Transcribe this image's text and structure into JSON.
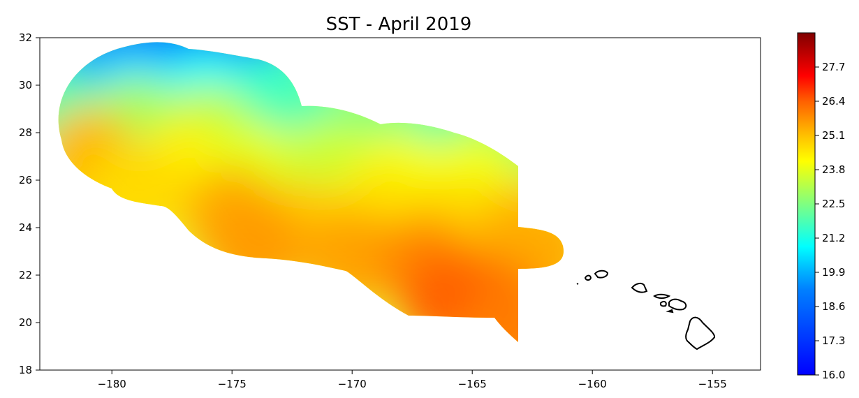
{
  "chart_data": {
    "type": "heatmap",
    "title": "SST - April 2019",
    "xlabel": "",
    "ylabel": "",
    "xlim": [
      -183,
      -153
    ],
    "ylim": [
      18,
      32
    ],
    "x_ticks": [
      -180,
      -175,
      -170,
      -165,
      -160,
      -155
    ],
    "x_tick_labels": [
      "−180",
      "−175",
      "−170",
      "−165",
      "−160",
      "−155"
    ],
    "y_ticks": [
      18,
      20,
      22,
      24,
      26,
      28,
      30,
      32
    ],
    "y_tick_labels": [
      "18",
      "20",
      "22",
      "24",
      "26",
      "28",
      "30",
      "32"
    ],
    "colorbar": {
      "colormap": "jet",
      "range": [
        16.0,
        29.0
      ],
      "ticks": [
        16.0,
        17.3,
        18.6,
        19.9,
        21.2,
        22.5,
        23.8,
        25.1,
        26.4,
        27.7
      ],
      "tick_labels": [
        "16.0",
        "17.3",
        "18.6",
        "19.9",
        "21.2",
        "22.5",
        "23.8",
        "25.1",
        "26.4",
        "27.7"
      ]
    },
    "grid": false,
    "overlay": "Hawaiian Islands coastline",
    "sst_field": [
      {
        "lon": -182,
        "lat": 30,
        "value": 21.5
      },
      {
        "lon": -180,
        "lat": 31,
        "value": 19.5
      },
      {
        "lon": -178,
        "lat": 31.5,
        "value": 19.0
      },
      {
        "lon": -176,
        "lat": 31,
        "value": 19.2
      },
      {
        "lon": -174,
        "lat": 30.8,
        "value": 19.0
      },
      {
        "lon": -179,
        "lat": 29.5,
        "value": 20.5
      },
      {
        "lon": -176,
        "lat": 29.5,
        "value": 21.0
      },
      {
        "lon": -173,
        "lat": 29.5,
        "value": 21.5
      },
      {
        "lon": -182,
        "lat": 28.5,
        "value": 22.0
      },
      {
        "lon": -179,
        "lat": 28.3,
        "value": 23.0
      },
      {
        "lon": -176,
        "lat": 28.0,
        "value": 23.3
      },
      {
        "lon": -172,
        "lat": 28.5,
        "value": 21.8
      },
      {
        "lon": -169,
        "lat": 28.0,
        "value": 22.5
      },
      {
        "lon": -166,
        "lat": 27.8,
        "value": 22.0
      },
      {
        "lon": -164,
        "lat": 27.0,
        "value": 22.8
      },
      {
        "lon": -181,
        "lat": 27.0,
        "value": 25.0
      },
      {
        "lon": -177,
        "lat": 26.5,
        "value": 24.3
      },
      {
        "lon": -174,
        "lat": 26.3,
        "value": 23.8
      },
      {
        "lon": -171,
        "lat": 26.5,
        "value": 23.5
      },
      {
        "lon": -168,
        "lat": 26.0,
        "value": 24.0
      },
      {
        "lon": -165,
        "lat": 25.8,
        "value": 24.0
      },
      {
        "lon": -179,
        "lat": 25.5,
        "value": 24.6
      },
      {
        "lon": -175,
        "lat": 24.5,
        "value": 25.2
      },
      {
        "lon": -172,
        "lat": 24.0,
        "value": 24.8
      },
      {
        "lon": -169,
        "lat": 24.5,
        "value": 24.5
      },
      {
        "lon": -166,
        "lat": 24.0,
        "value": 24.6
      },
      {
        "lon": -163,
        "lat": 24.0,
        "value": 24.8
      },
      {
        "lon": -174,
        "lat": 23.2,
        "value": 25.4
      },
      {
        "lon": -170,
        "lat": 22.8,
        "value": 25.3
      },
      {
        "lon": -167,
        "lat": 22.5,
        "value": 25.6
      },
      {
        "lon": -163,
        "lat": 22.8,
        "value": 25.3
      },
      {
        "lon": -162,
        "lat": 23.0,
        "value": 25.2
      },
      {
        "lon": -166,
        "lat": 21.0,
        "value": 26.1
      },
      {
        "lon": -164,
        "lat": 20.5,
        "value": 26.2
      },
      {
        "lon": -163.5,
        "lat": 19.8,
        "value": 25.8
      }
    ]
  }
}
